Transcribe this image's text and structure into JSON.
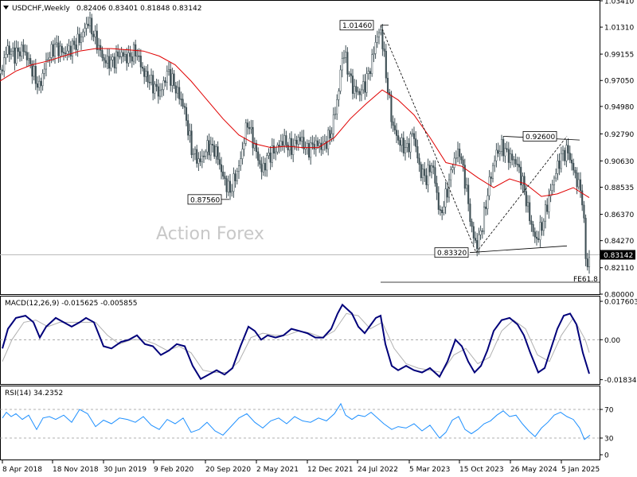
{
  "header": {
    "symbol": "USDCHF,Weekly",
    "ohlc": "0.82406 0.83401 0.81848 0.83142"
  },
  "watermark": "Action Forex",
  "chart_data": [
    {
      "type": "candlestick",
      "panel": "price",
      "ylim": [
        0.8,
        1.0341
      ],
      "y_ticks": [
        "1.03410",
        "1.01310",
        "0.99155",
        "0.97050",
        "0.94980",
        "0.92790",
        "0.90630",
        "0.88535",
        "0.86370",
        "0.84270",
        "0.83142",
        "0.82110",
        "0.80000"
      ],
      "x_ticks": [
        "8 Apr 2018",
        "18 Nov 2018",
        "30 Jun 2019",
        "9 Feb 2020",
        "20 Sep 2020",
        "2 May 2021",
        "12 Dec 2021",
        "24 Jul 2022",
        "5 Mar 2023",
        "15 Oct 2023",
        "26 May 2024",
        "5 Jan 2025"
      ],
      "last_price": 0.83142,
      "last_price_label": "0.83142",
      "price_path": [
        [
          0,
          0.976
        ],
        [
          8,
          0.996
        ],
        [
          18,
          0.991
        ],
        [
          28,
          0.996
        ],
        [
          38,
          0.982
        ],
        [
          48,
          0.964
        ],
        [
          58,
          0.987
        ],
        [
          68,
          0.998
        ],
        [
          80,
          0.992
        ],
        [
          90,
          0.997
        ],
        [
          100,
          1.004
        ],
        [
          110,
          1.018
        ],
        [
          120,
          1.002
        ],
        [
          130,
          0.986
        ],
        [
          140,
          0.985
        ],
        [
          150,
          0.992
        ],
        [
          160,
          0.988
        ],
        [
          170,
          0.994
        ],
        [
          180,
          0.976
        ],
        [
          190,
          0.968
        ],
        [
          200,
          0.96
        ],
        [
          210,
          0.978
        ],
        [
          220,
          0.964
        ],
        [
          230,
          0.95
        ],
        [
          240,
          0.915
        ],
        [
          250,
          0.905
        ],
        [
          260,
          0.918
        ],
        [
          270,
          0.915
        ],
        [
          280,
          0.892
        ],
        [
          288,
          0.882
        ],
        [
          300,
          0.903
        ],
        [
          310,
          0.938
        ],
        [
          318,
          0.92
        ],
        [
          328,
          0.898
        ],
        [
          336,
          0.91
        ],
        [
          345,
          0.915
        ],
        [
          355,
          0.923
        ],
        [
          365,
          0.916
        ],
        [
          375,
          0.925
        ],
        [
          385,
          0.915
        ],
        [
          395,
          0.92
        ],
        [
          405,
          0.918
        ],
        [
          415,
          0.928
        ],
        [
          424,
          0.96
        ],
        [
          430,
          0.995
        ],
        [
          436,
          0.98
        ],
        [
          442,
          0.965
        ],
        [
          450,
          0.96
        ],
        [
          458,
          0.968
        ],
        [
          466,
          0.985
        ],
        [
          472,
          1.005
        ],
        [
          478,
          1.01
        ],
        [
          484,
          0.975
        ],
        [
          492,
          0.935
        ],
        [
          500,
          0.922
        ],
        [
          510,
          0.915
        ],
        [
          518,
          0.93
        ],
        [
          526,
          0.9
        ],
        [
          534,
          0.892
        ],
        [
          542,
          0.905
        ],
        [
          552,
          0.862
        ],
        [
          560,
          0.88
        ],
        [
          568,
          0.905
        ],
        [
          576,
          0.915
        ],
        [
          584,
          0.888
        ],
        [
          592,
          0.85
        ],
        [
          598,
          0.838
        ],
        [
          606,
          0.858
        ],
        [
          614,
          0.89
        ],
        [
          622,
          0.912
        ],
        [
          630,
          0.918
        ],
        [
          638,
          0.91
        ],
        [
          648,
          0.905
        ],
        [
          656,
          0.888
        ],
        [
          664,
          0.862
        ],
        [
          672,
          0.842
        ],
        [
          680,
          0.855
        ],
        [
          688,
          0.875
        ],
        [
          696,
          0.895
        ],
        [
          704,
          0.91
        ],
        [
          712,
          0.915
        ],
        [
          718,
          0.902
        ],
        [
          724,
          0.89
        ],
        [
          730,
          0.88
        ],
        [
          736,
          0.82
        ],
        [
          741,
          0.831
        ]
      ],
      "ma_path": [
        [
          0,
          0.97
        ],
        [
          20,
          0.978
        ],
        [
          40,
          0.983
        ],
        [
          60,
          0.986
        ],
        [
          80,
          0.99
        ],
        [
          100,
          0.994
        ],
        [
          120,
          0.996
        ],
        [
          140,
          0.996
        ],
        [
          160,
          0.995
        ],
        [
          180,
          0.994
        ],
        [
          200,
          0.99
        ],
        [
          220,
          0.983
        ],
        [
          240,
          0.97
        ],
        [
          260,
          0.955
        ],
        [
          280,
          0.94
        ],
        [
          300,
          0.927
        ],
        [
          320,
          0.92
        ],
        [
          340,
          0.917
        ],
        [
          360,
          0.918
        ],
        [
          380,
          0.917
        ],
        [
          400,
          0.917
        ],
        [
          420,
          0.925
        ],
        [
          440,
          0.94
        ],
        [
          460,
          0.952
        ],
        [
          480,
          0.963
        ],
        [
          500,
          0.955
        ],
        [
          520,
          0.943
        ],
        [
          540,
          0.925
        ],
        [
          560,
          0.905
        ],
        [
          580,
          0.902
        ],
        [
          600,
          0.893
        ],
        [
          620,
          0.885
        ],
        [
          640,
          0.892
        ],
        [
          660,
          0.888
        ],
        [
          680,
          0.878
        ],
        [
          700,
          0.88
        ],
        [
          720,
          0.885
        ],
        [
          740,
          0.877
        ]
      ],
      "annotations": [
        {
          "label": "1.01460",
          "price": 1.0146
        },
        {
          "label": "0.92600",
          "price": 0.926
        },
        {
          "label": "0.87560",
          "price": 0.8756
        },
        {
          "label": "0.83320",
          "price": 0.8332
        }
      ],
      "fib_label": "FE61.8",
      "fib_price": 0.8095
    },
    {
      "type": "line",
      "panel": "macd",
      "title": "MACD(12,26,9) -0.015625 -0.005855",
      "ylim": [
        -0.0203,
        0.0198
      ],
      "y_ticks": [
        "0.017603",
        "0.00",
        "-0.01834"
      ],
      "macd_path": [
        [
          3,
          -0.004
        ],
        [
          10,
          0.005
        ],
        [
          20,
          0.01
        ],
        [
          32,
          0.011
        ],
        [
          42,
          0.008
        ],
        [
          50,
          0.001
        ],
        [
          58,
          0.006
        ],
        [
          70,
          0.01
        ],
        [
          80,
          0.008
        ],
        [
          90,
          0.006
        ],
        [
          100,
          0.008
        ],
        [
          108,
          0.01
        ],
        [
          118,
          0.008
        ],
        [
          130,
          -0.003
        ],
        [
          140,
          -0.004
        ],
        [
          152,
          -0.001
        ],
        [
          162,
          0.0
        ],
        [
          172,
          0.002
        ],
        [
          182,
          -0.002
        ],
        [
          192,
          -0.003
        ],
        [
          202,
          -0.007
        ],
        [
          212,
          -0.005
        ],
        [
          222,
          -0.002
        ],
        [
          232,
          -0.003
        ],
        [
          242,
          -0.012
        ],
        [
          252,
          -0.018
        ],
        [
          262,
          -0.016
        ],
        [
          272,
          -0.014
        ],
        [
          282,
          -0.016
        ],
        [
          292,
          -0.013
        ],
        [
          302,
          -0.003
        ],
        [
          312,
          0.006
        ],
        [
          320,
          0.004
        ],
        [
          328,
          0.0
        ],
        [
          336,
          0.002
        ],
        [
          346,
          0.001
        ],
        [
          356,
          0.002
        ],
        [
          366,
          0.005
        ],
        [
          376,
          0.004
        ],
        [
          386,
          0.003
        ],
        [
          396,
          0.001
        ],
        [
          406,
          0.001
        ],
        [
          416,
          0.005
        ],
        [
          424,
          0.012
        ],
        [
          430,
          0.016
        ],
        [
          436,
          0.014
        ],
        [
          442,
          0.012
        ],
        [
          450,
          0.006
        ],
        [
          458,
          0.003
        ],
        [
          466,
          0.007
        ],
        [
          472,
          0.01
        ],
        [
          478,
          0.011
        ],
        [
          484,
          -0.002
        ],
        [
          492,
          -0.012
        ],
        [
          500,
          -0.014
        ],
        [
          510,
          -0.012
        ],
        [
          520,
          -0.014
        ],
        [
          530,
          -0.015
        ],
        [
          540,
          -0.013
        ],
        [
          552,
          -0.017
        ],
        [
          562,
          -0.01
        ],
        [
          572,
          0.0
        ],
        [
          580,
          -0.003
        ],
        [
          588,
          -0.01
        ],
        [
          596,
          -0.015
        ],
        [
          604,
          -0.012
        ],
        [
          612,
          -0.005
        ],
        [
          620,
          0.004
        ],
        [
          630,
          0.009
        ],
        [
          640,
          0.01
        ],
        [
          650,
          0.007
        ],
        [
          658,
          0.002
        ],
        [
          666,
          -0.006
        ],
        [
          676,
          -0.015
        ],
        [
          684,
          -0.013
        ],
        [
          692,
          -0.004
        ],
        [
          700,
          0.005
        ],
        [
          708,
          0.011
        ],
        [
          716,
          0.012
        ],
        [
          724,
          0.007
        ],
        [
          732,
          -0.006
        ],
        [
          740,
          -0.0156
        ]
      ],
      "signal_path": [
        [
          3,
          -0.01
        ],
        [
          15,
          0.0
        ],
        [
          30,
          0.008
        ],
        [
          45,
          0.009
        ],
        [
          60,
          0.006
        ],
        [
          75,
          0.008
        ],
        [
          90,
          0.008
        ],
        [
          105,
          0.008
        ],
        [
          120,
          0.008
        ],
        [
          135,
          0.002
        ],
        [
          150,
          -0.002
        ],
        [
          165,
          0.0
        ],
        [
          180,
          0.0
        ],
        [
          195,
          -0.002
        ],
        [
          210,
          -0.005
        ],
        [
          225,
          -0.003
        ],
        [
          240,
          -0.006
        ],
        [
          255,
          -0.014
        ],
        [
          270,
          -0.015
        ],
        [
          285,
          -0.015
        ],
        [
          300,
          -0.01
        ],
        [
          315,
          0.001
        ],
        [
          330,
          0.003
        ],
        [
          345,
          0.002
        ],
        [
          360,
          0.002
        ],
        [
          375,
          0.004
        ],
        [
          390,
          0.003
        ],
        [
          405,
          0.001
        ],
        [
          420,
          0.004
        ],
        [
          435,
          0.012
        ],
        [
          450,
          0.011
        ],
        [
          465,
          0.005
        ],
        [
          480,
          0.008
        ],
        [
          495,
          -0.004
        ],
        [
          510,
          -0.011
        ],
        [
          525,
          -0.013
        ],
        [
          540,
          -0.014
        ],
        [
          555,
          -0.015
        ],
        [
          570,
          -0.007
        ],
        [
          585,
          -0.004
        ],
        [
          600,
          -0.011
        ],
        [
          615,
          -0.008
        ],
        [
          630,
          0.004
        ],
        [
          645,
          0.009
        ],
        [
          660,
          0.005
        ],
        [
          675,
          -0.007
        ],
        [
          690,
          -0.01
        ],
        [
          705,
          0.002
        ],
        [
          720,
          0.01
        ],
        [
          735,
          0.0
        ],
        [
          740,
          -0.0059
        ]
      ]
    },
    {
      "type": "line",
      "panel": "rsi",
      "title": "RSI(14) 34.2352",
      "ylim": [
        0,
        100
      ],
      "y_ticks": [
        "70",
        "30",
        "0"
      ],
      "rsi_path": [
        [
          3,
          58
        ],
        [
          8,
          66
        ],
        [
          14,
          60
        ],
        [
          20,
          64
        ],
        [
          28,
          56
        ],
        [
          36,
          62
        ],
        [
          46,
          42
        ],
        [
          54,
          58
        ],
        [
          62,
          60
        ],
        [
          70,
          56
        ],
        [
          80,
          62
        ],
        [
          90,
          52
        ],
        [
          100,
          70
        ],
        [
          110,
          64
        ],
        [
          120,
          46
        ],
        [
          130,
          55
        ],
        [
          140,
          50
        ],
        [
          150,
          58
        ],
        [
          160,
          56
        ],
        [
          170,
          52
        ],
        [
          180,
          60
        ],
        [
          190,
          48
        ],
        [
          200,
          42
        ],
        [
          210,
          56
        ],
        [
          220,
          50
        ],
        [
          230,
          58
        ],
        [
          240,
          38
        ],
        [
          250,
          42
        ],
        [
          260,
          52
        ],
        [
          270,
          40
        ],
        [
          280,
          34
        ],
        [
          290,
          46
        ],
        [
          300,
          58
        ],
        [
          310,
          64
        ],
        [
          320,
          52
        ],
        [
          330,
          44
        ],
        [
          340,
          54
        ],
        [
          350,
          58
        ],
        [
          360,
          50
        ],
        [
          370,
          60
        ],
        [
          380,
          54
        ],
        [
          390,
          52
        ],
        [
          400,
          58
        ],
        [
          410,
          54
        ],
        [
          420,
          64
        ],
        [
          428,
          78
        ],
        [
          434,
          62
        ],
        [
          442,
          56
        ],
        [
          450,
          62
        ],
        [
          458,
          60
        ],
        [
          466,
          66
        ],
        [
          474,
          58
        ],
        [
          482,
          50
        ],
        [
          492,
          42
        ],
        [
          500,
          46
        ],
        [
          510,
          44
        ],
        [
          520,
          50
        ],
        [
          530,
          40
        ],
        [
          540,
          48
        ],
        [
          552,
          30
        ],
        [
          560,
          38
        ],
        [
          568,
          55
        ],
        [
          576,
          60
        ],
        [
          584,
          42
        ],
        [
          592,
          36
        ],
        [
          600,
          42
        ],
        [
          608,
          50
        ],
        [
          616,
          54
        ],
        [
          624,
          62
        ],
        [
          632,
          68
        ],
        [
          640,
          60
        ],
        [
          648,
          62
        ],
        [
          656,
          50
        ],
        [
          664,
          40
        ],
        [
          672,
          32
        ],
        [
          680,
          44
        ],
        [
          688,
          52
        ],
        [
          696,
          62
        ],
        [
          704,
          66
        ],
        [
          712,
          60
        ],
        [
          720,
          56
        ],
        [
          728,
          44
        ],
        [
          734,
          28
        ],
        [
          741,
          34
        ]
      ]
    }
  ]
}
